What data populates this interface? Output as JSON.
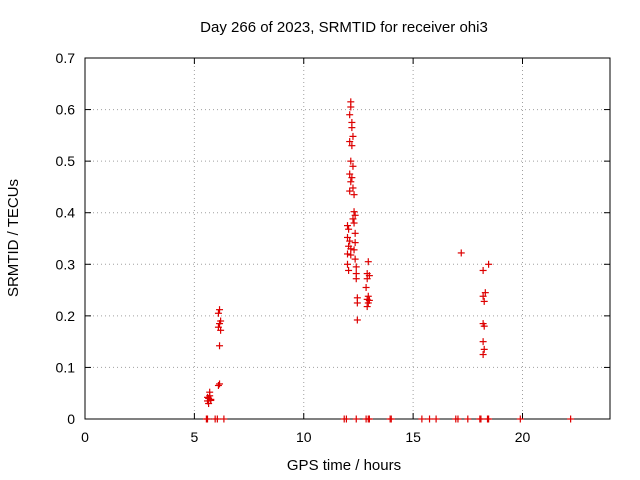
{
  "chart_data": {
    "type": "scatter",
    "title": "Day 266 of 2023, SRMTID for receiver ohi3",
    "xlabel": "GPS time / hours",
    "ylabel": "SRMTID / TECUs",
    "xlim": [
      0,
      24
    ],
    "ylim": [
      0,
      0.7
    ],
    "xticks": [
      "0",
      "5",
      "10",
      "15",
      "20"
    ],
    "yticks": [
      "0",
      "0.1",
      "0.2",
      "0.3",
      "0.4",
      "0.5",
      "0.6",
      "0.7"
    ],
    "grid": true,
    "marker": "+",
    "color": "#dd0000",
    "series": [
      {
        "name": "SRMTID",
        "points": [
          [
            5.55,
            0.0
          ],
          [
            5.6,
            0.0
          ],
          [
            5.95,
            0.0
          ],
          [
            6.05,
            0.0
          ],
          [
            6.35,
            0.0
          ],
          [
            11.85,
            0.0
          ],
          [
            11.95,
            0.0
          ],
          [
            12.4,
            0.0
          ],
          [
            12.85,
            0.0
          ],
          [
            12.95,
            0.0
          ],
          [
            13.0,
            0.0
          ],
          [
            13.95,
            0.0
          ],
          [
            14.0,
            0.0
          ],
          [
            15.4,
            0.0
          ],
          [
            15.75,
            0.0
          ],
          [
            16.05,
            0.0
          ],
          [
            16.95,
            0.0
          ],
          [
            17.05,
            0.0
          ],
          [
            17.5,
            0.0
          ],
          [
            18.05,
            0.0
          ],
          [
            18.1,
            0.0
          ],
          [
            18.4,
            0.0
          ],
          [
            18.45,
            0.0
          ],
          [
            19.9,
            0.0
          ],
          [
            22.2,
            0.0
          ],
          [
            5.6,
            0.035
          ],
          [
            5.65,
            0.04
          ],
          [
            5.7,
            0.045
          ],
          [
            5.75,
            0.038
          ],
          [
            5.65,
            0.03
          ],
          [
            5.7,
            0.052
          ],
          [
            5.6,
            0.042
          ],
          [
            5.75,
            0.036
          ],
          [
            6.1,
            0.065
          ],
          [
            6.15,
            0.068
          ],
          [
            6.15,
            0.142
          ],
          [
            6.1,
            0.178
          ],
          [
            6.2,
            0.172
          ],
          [
            6.15,
            0.185
          ],
          [
            6.2,
            0.19
          ],
          [
            6.1,
            0.205
          ],
          [
            6.15,
            0.212
          ],
          [
            12.15,
            0.615
          ],
          [
            12.15,
            0.605
          ],
          [
            12.1,
            0.59
          ],
          [
            12.2,
            0.575
          ],
          [
            12.2,
            0.565
          ],
          [
            12.25,
            0.548
          ],
          [
            12.1,
            0.538
          ],
          [
            12.2,
            0.53
          ],
          [
            12.15,
            0.5
          ],
          [
            12.25,
            0.49
          ],
          [
            12.1,
            0.475
          ],
          [
            12.2,
            0.468
          ],
          [
            12.15,
            0.46
          ],
          [
            12.25,
            0.448
          ],
          [
            12.1,
            0.442
          ],
          [
            12.3,
            0.435
          ],
          [
            12.3,
            0.402
          ],
          [
            12.35,
            0.395
          ],
          [
            12.25,
            0.388
          ],
          [
            12.3,
            0.38
          ],
          [
            12.0,
            0.375
          ],
          [
            12.05,
            0.368
          ],
          [
            12.35,
            0.36
          ],
          [
            12.0,
            0.352
          ],
          [
            12.1,
            0.345
          ],
          [
            12.35,
            0.342
          ],
          [
            12.05,
            0.335
          ],
          [
            12.15,
            0.33
          ],
          [
            12.3,
            0.328
          ],
          [
            12.0,
            0.32
          ],
          [
            12.15,
            0.318
          ],
          [
            12.35,
            0.31
          ],
          [
            12.0,
            0.3
          ],
          [
            12.4,
            0.295
          ],
          [
            12.05,
            0.288
          ],
          [
            12.4,
            0.282
          ],
          [
            12.4,
            0.272
          ],
          [
            12.45,
            0.235
          ],
          [
            12.45,
            0.225
          ],
          [
            12.45,
            0.192
          ],
          [
            12.95,
            0.305
          ],
          [
            12.9,
            0.282
          ],
          [
            13.0,
            0.278
          ],
          [
            12.9,
            0.272
          ],
          [
            12.85,
            0.255
          ],
          [
            12.95,
            0.238
          ],
          [
            12.9,
            0.232
          ],
          [
            13.0,
            0.23
          ],
          [
            12.95,
            0.225
          ],
          [
            12.9,
            0.218
          ],
          [
            17.2,
            0.322
          ],
          [
            18.45,
            0.3
          ],
          [
            18.2,
            0.288
          ],
          [
            18.3,
            0.245
          ],
          [
            18.2,
            0.238
          ],
          [
            18.25,
            0.228
          ],
          [
            18.2,
            0.185
          ],
          [
            18.25,
            0.18
          ],
          [
            18.2,
            0.15
          ],
          [
            18.25,
            0.135
          ],
          [
            18.2,
            0.125
          ]
        ]
      }
    ]
  }
}
